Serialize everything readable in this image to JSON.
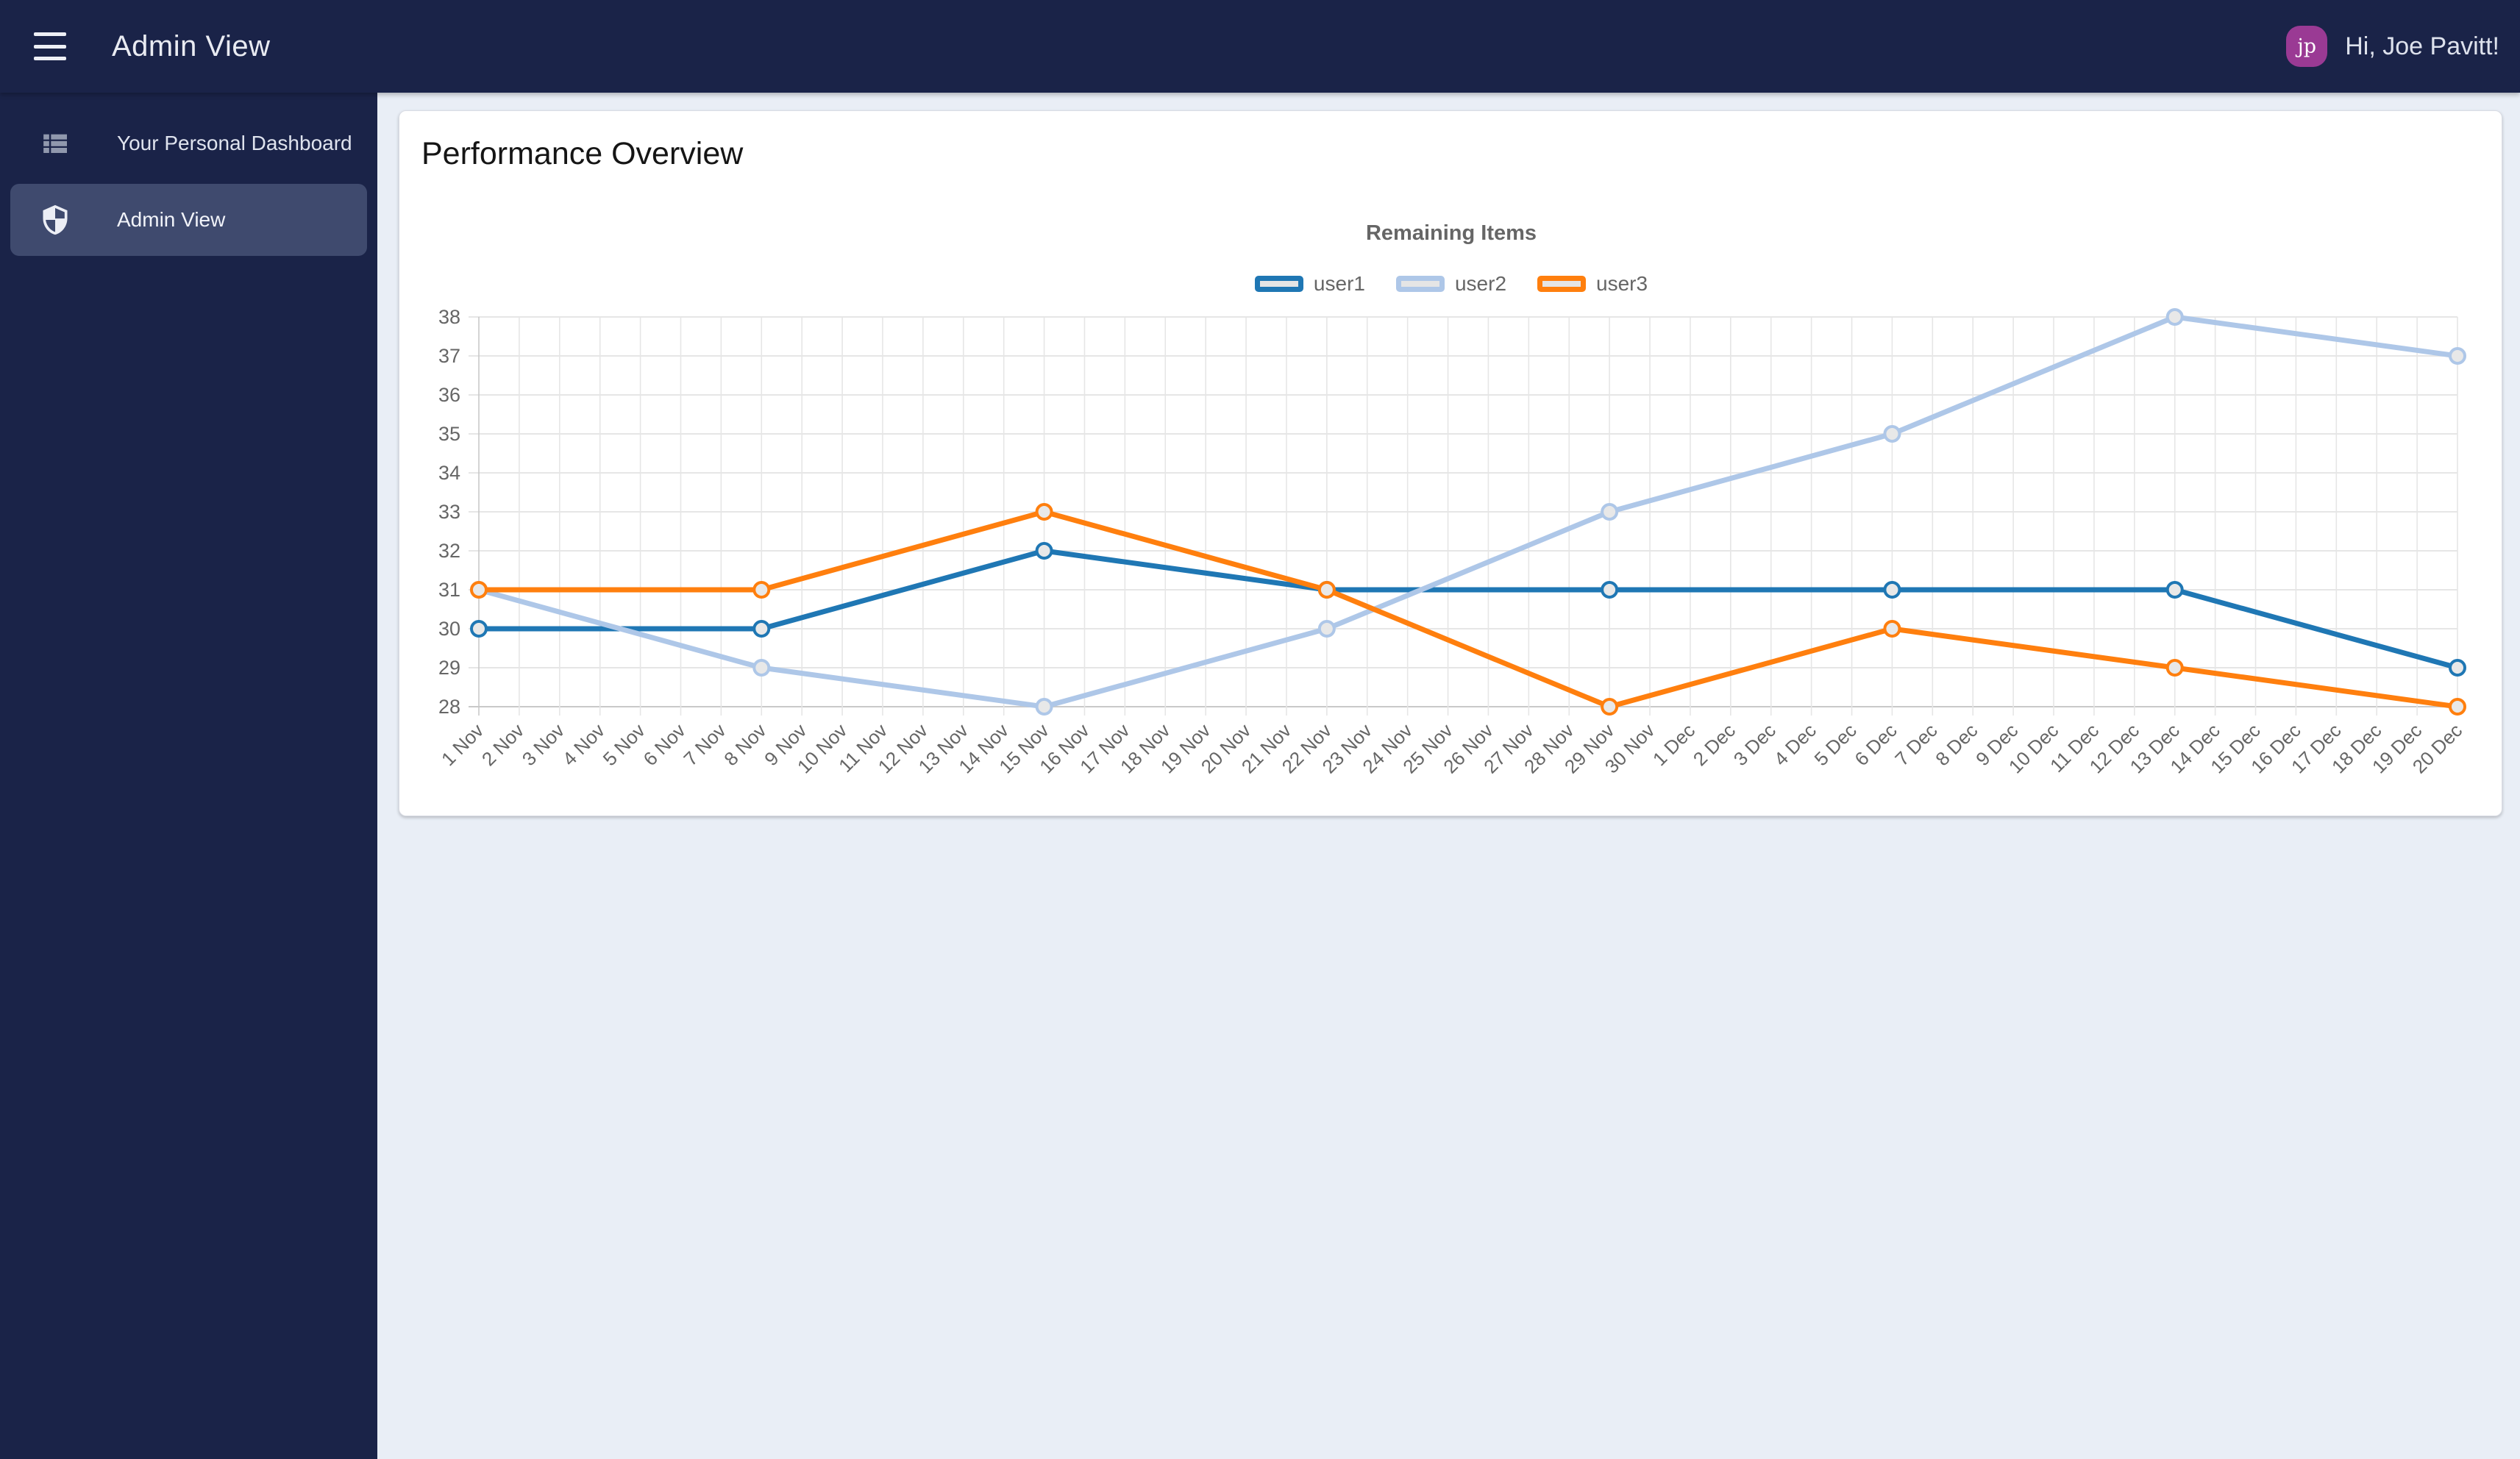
{
  "theme": {
    "header_bg": "#1a2348",
    "sidebar_bg": "#1a2348",
    "active_item_bg": "#3f4a6e",
    "page_bg": "#e9eef6",
    "card_bg": "#ffffff",
    "avatar_bg": "#9a3a94",
    "chart_text": "#666666"
  },
  "header": {
    "title": "Admin View",
    "avatar_initials": "jp",
    "greeting": "Hi, Joe Pavitt!"
  },
  "sidebar": {
    "items": [
      {
        "label": "Your Personal Dashboard",
        "icon": "view-list-icon",
        "active": false
      },
      {
        "label": "Admin View",
        "icon": "shield-icon",
        "active": true
      }
    ]
  },
  "main": {
    "card_title": "Performance Overview"
  },
  "chart_data": {
    "type": "line",
    "title": "Remaining Items",
    "xlabel": "",
    "ylabel": "",
    "ylim": [
      28,
      38
    ],
    "y_ticks": [
      28,
      29,
      30,
      31,
      32,
      33,
      34,
      35,
      36,
      37,
      38
    ],
    "grid": true,
    "legend_position": "top",
    "x_categories": [
      "1 Nov",
      "2 Nov",
      "3 Nov",
      "4 Nov",
      "5 Nov",
      "6 Nov",
      "7 Nov",
      "8 Nov",
      "9 Nov",
      "10 Nov",
      "11 Nov",
      "12 Nov",
      "13 Nov",
      "14 Nov",
      "15 Nov",
      "16 Nov",
      "17 Nov",
      "18 Nov",
      "19 Nov",
      "20 Nov",
      "21 Nov",
      "22 Nov",
      "23 Nov",
      "24 Nov",
      "25 Nov",
      "26 Nov",
      "27 Nov",
      "28 Nov",
      "29 Nov",
      "30 Nov",
      "1 Dec",
      "2 Dec",
      "3 Dec",
      "4 Dec",
      "5 Dec",
      "6 Dec",
      "7 Dec",
      "8 Dec",
      "9 Dec",
      "10 Dec",
      "11 Dec",
      "12 Dec",
      "13 Dec",
      "14 Dec",
      "15 Dec",
      "16 Dec",
      "17 Dec",
      "18 Dec",
      "19 Dec",
      "20 Dec"
    ],
    "point_categories": [
      "1 Nov",
      "8 Nov",
      "15 Nov",
      "22 Nov",
      "29 Nov",
      "6 Dec",
      "13 Dec",
      "20 Dec"
    ],
    "series": [
      {
        "name": "user1",
        "color": "#1f77b4",
        "values": [
          30,
          30,
          32,
          31,
          31,
          31,
          31,
          29
        ]
      },
      {
        "name": "user2",
        "color": "#aec7e8",
        "values": [
          31,
          29,
          28,
          30,
          33,
          35,
          38,
          37
        ]
      },
      {
        "name": "user3",
        "color": "#ff7f0e",
        "values": [
          31,
          31,
          33,
          31,
          28,
          30,
          29,
          28
        ]
      }
    ],
    "point_fill": "#e8e8e8",
    "grid_color": "#e6e6e6",
    "axis_color": "#c9c9c9",
    "tick_text_color": "#666666"
  }
}
